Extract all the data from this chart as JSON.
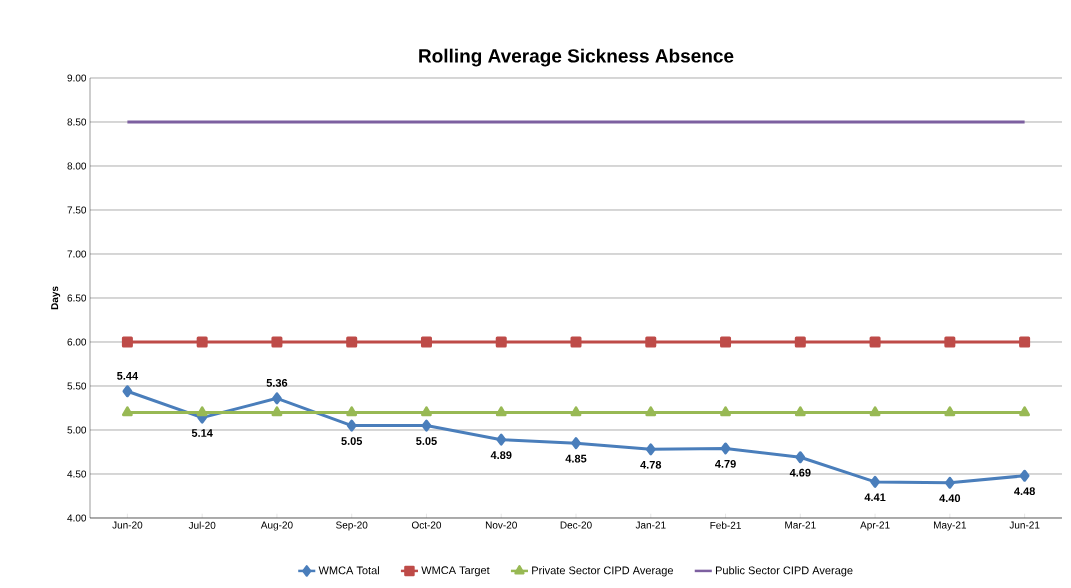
{
  "chart_data": {
    "type": "line",
    "title": "Rolling Average Sickness Absence",
    "ylabel": "Days",
    "categories": [
      "Jun-20",
      "Jul-20",
      "Aug-20",
      "Sep-20",
      "Oct-20",
      "Nov-20",
      "Dec-20",
      "Jan-21",
      "Feb-21",
      "Mar-21",
      "Apr-21",
      "May-21",
      "Jun-21"
    ],
    "series": [
      {
        "name": "WMCA Total",
        "color": "#4a7ebb",
        "marker": "diamond",
        "values": [
          5.44,
          5.14,
          5.36,
          5.05,
          5.05,
          4.89,
          4.85,
          4.78,
          4.79,
          4.69,
          4.41,
          4.4,
          4.48
        ],
        "value_labels": [
          "5.44",
          "5.14",
          "5.36",
          "5.05",
          "5.05",
          "4.89",
          "4.85",
          "4.78",
          "4.79",
          "4.69",
          "4.41",
          "4.40",
          "4.48"
        ]
      },
      {
        "name": "WMCA Target",
        "color": "#be4b48",
        "marker": "square",
        "values": [
          6.0,
          6.0,
          6.0,
          6.0,
          6.0,
          6.0,
          6.0,
          6.0,
          6.0,
          6.0,
          6.0,
          6.0,
          6.0
        ]
      },
      {
        "name": "Private Sector CIPD Average",
        "color": "#98b954",
        "marker": "triangle",
        "values": [
          5.2,
          5.2,
          5.2,
          5.2,
          5.2,
          5.2,
          5.2,
          5.2,
          5.2,
          5.2,
          5.2,
          5.2,
          5.2
        ]
      },
      {
        "name": "Public Sector CIPD Average",
        "color": "#7d60a0",
        "marker": "none",
        "values": [
          8.5,
          8.5,
          8.5,
          8.5,
          8.5,
          8.5,
          8.5,
          8.5,
          8.5,
          8.5,
          8.5,
          8.5,
          8.5
        ]
      }
    ],
    "ylim": [
      4,
      9
    ],
    "yticks": [
      {
        "value": 4,
        "label": "4.00"
      },
      {
        "value": 4.5,
        "label": "4.50"
      },
      {
        "value": 5,
        "label": "5.00"
      },
      {
        "value": 5.5,
        "label": "5.50"
      },
      {
        "value": 6,
        "label": "6.00"
      },
      {
        "value": 6.5,
        "label": "6.50"
      },
      {
        "value": 7,
        "label": "7.00"
      },
      {
        "value": 7.5,
        "label": "7.50"
      },
      {
        "value": 8,
        "label": "8.00"
      },
      {
        "value": 8.5,
        "label": "8.50"
      },
      {
        "value": 9,
        "label": "9.00"
      }
    ],
    "grid": "y",
    "legend": "bottom"
  }
}
